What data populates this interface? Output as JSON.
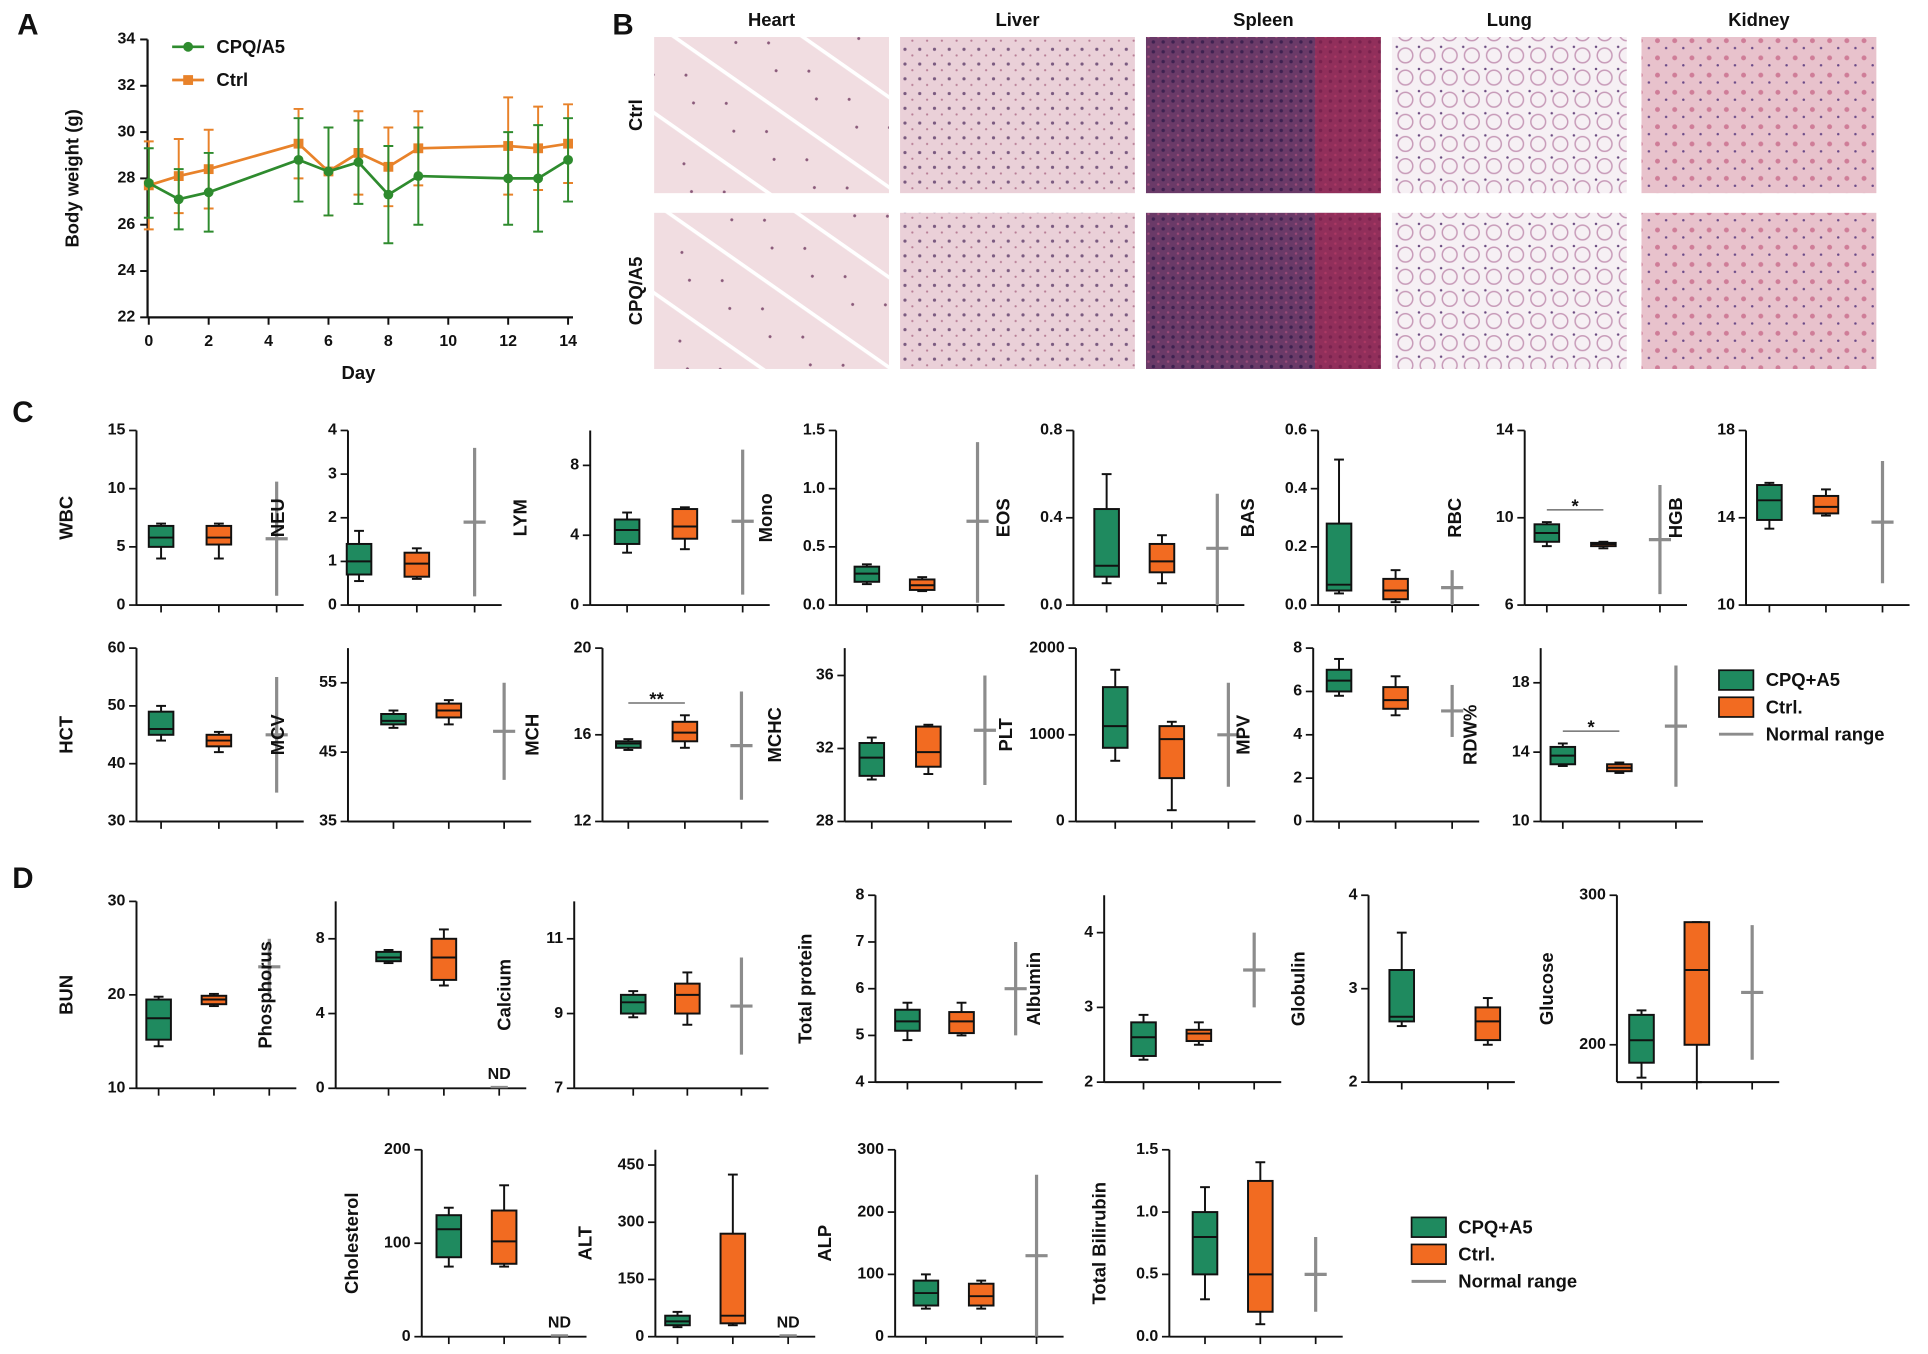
{
  "box_legend": [
    {
      "name": "CPQ+A5",
      "color": "#1f8a5f"
    },
    {
      "name": "Ctrl.",
      "color": "#f26b21"
    },
    {
      "name": "Normal range",
      "color": "#8c8c8c"
    }
  ],
  "chart_data": [
    {
      "type": "line",
      "panel": "A",
      "xlabel": "Day",
      "ylabel": "Body weight (g)",
      "x": [
        0,
        1,
        2,
        5,
        6,
        7,
        8,
        9,
        12,
        13,
        14
      ],
      "xlim": [
        0,
        14
      ],
      "xticks": [
        0,
        2,
        4,
        6,
        8,
        10,
        12,
        14
      ],
      "ylim": [
        22,
        34
      ],
      "yticks": [
        22,
        24,
        26,
        28,
        30,
        32,
        34
      ],
      "series": [
        {
          "name": "CPQ/A5",
          "color": "#2e8b2e",
          "marker": "circle",
          "values": [
            27.8,
            27.1,
            27.4,
            28.8,
            28.3,
            28.7,
            27.3,
            28.1,
            28.0,
            28.0,
            28.8
          ],
          "errors": [
            1.5,
            1.3,
            1.7,
            1.8,
            1.9,
            1.8,
            2.1,
            2.1,
            2.0,
            2.3,
            1.8
          ]
        },
        {
          "name": "Ctrl",
          "color": "#e8822a",
          "marker": "square",
          "values": [
            27.7,
            28.1,
            28.4,
            29.5,
            28.3,
            29.1,
            28.5,
            29.3,
            29.4,
            29.3,
            29.5
          ],
          "errors": [
            1.9,
            1.6,
            1.7,
            1.5,
            1.9,
            1.8,
            1.7,
            1.6,
            2.1,
            1.8,
            1.7
          ]
        }
      ]
    },
    {
      "type": "image-grid",
      "panel": "B",
      "columns": [
        "Heart",
        "Liver",
        "Spleen",
        "Lung",
        "Kidney"
      ],
      "rows": [
        "Ctrl",
        "CPQ/A5"
      ]
    },
    {
      "type": "box",
      "panel": "C",
      "ylabel": "WBC",
      "ylim": [
        0,
        15
      ],
      "yticks": [
        0,
        5,
        10,
        15
      ],
      "boxes": [
        {
          "min": 4,
          "q1": 5,
          "median": 5.8,
          "q3": 6.8,
          "max": 7
        },
        {
          "min": 4,
          "q1": 5.2,
          "median": 5.8,
          "q3": 6.8,
          "max": 7
        }
      ],
      "normal": {
        "min": 0.8,
        "mid": 5.7,
        "max": 10.6
      }
    },
    {
      "type": "box",
      "ylabel": "NEU",
      "ylim": [
        0,
        4
      ],
      "yticks": [
        0,
        1,
        2,
        3,
        4
      ],
      "boxes": [
        {
          "min": 0.55,
          "q1": 0.7,
          "median": 1.0,
          "q3": 1.4,
          "max": 1.7
        },
        {
          "min": 0.6,
          "q1": 0.65,
          "median": 0.95,
          "q3": 1.2,
          "max": 1.3
        }
      ],
      "normal": {
        "min": 0.2,
        "mid": 1.9,
        "max": 3.6
      }
    },
    {
      "type": "box",
      "ylabel": "LYM",
      "ylim": [
        0,
        10
      ],
      "yticks": [
        0,
        4,
        8
      ],
      "boxes": [
        {
          "min": 3,
          "q1": 3.5,
          "median": 4.3,
          "q3": 4.9,
          "max": 5.3
        },
        {
          "min": 3.2,
          "q1": 3.8,
          "median": 4.5,
          "q3": 5.5,
          "max": 5.6
        }
      ],
      "normal": {
        "min": 0.6,
        "mid": 4.8,
        "max": 8.9
      }
    },
    {
      "type": "box",
      "ylabel": "Mono",
      "ylim": [
        0,
        1.5
      ],
      "yticks": [
        {
          "value": 0,
          "label": "0.0"
        },
        {
          "value": 0.5,
          "label": "0.5"
        },
        {
          "value": 1,
          "label": "1.0"
        },
        {
          "value": 1.5,
          "label": "1.5"
        }
      ],
      "boxes": [
        {
          "min": 0.18,
          "q1": 0.2,
          "median": 0.27,
          "q3": 0.33,
          "max": 0.35
        },
        {
          "min": 0.12,
          "q1": 0.13,
          "median": 0.17,
          "q3": 0.22,
          "max": 0.24
        }
      ],
      "normal": {
        "min": 0.02,
        "mid": 0.72,
        "max": 1.4
      }
    },
    {
      "type": "box",
      "ylabel": "EOS",
      "ylim": [
        0,
        0.8
      ],
      "yticks": [
        {
          "value": 0,
          "label": "0.0"
        },
        0.4,
        0.8
      ],
      "boxes": [
        {
          "min": 0.1,
          "q1": 0.13,
          "median": 0.18,
          "q3": 0.44,
          "max": 0.6
        },
        {
          "min": 0.1,
          "q1": 0.15,
          "median": 0.2,
          "q3": 0.28,
          "max": 0.32
        }
      ],
      "normal": {
        "min": 0,
        "mid": 0.26,
        "max": 0.51
      }
    },
    {
      "type": "box",
      "ylabel": "BAS",
      "ylim": [
        0,
        0.6
      ],
      "yticks": [
        {
          "value": 0,
          "label": "0.0"
        },
        0.2,
        0.4,
        0.6
      ],
      "boxes": [
        {
          "min": 0.04,
          "q1": 0.05,
          "median": 0.07,
          "q3": 0.28,
          "max": 0.5
        },
        {
          "min": 0.01,
          "q1": 0.02,
          "median": 0.05,
          "q3": 0.09,
          "max": 0.12
        }
      ],
      "normal": {
        "min": 0,
        "mid": 0.06,
        "max": 0.12
      }
    },
    {
      "type": "box",
      "ylabel": "RBC",
      "ylim": [
        6,
        14
      ],
      "yticks": [
        6,
        10,
        14
      ],
      "annotation": "*",
      "boxes": [
        {
          "min": 8.7,
          "q1": 8.9,
          "median": 9.3,
          "q3": 9.7,
          "max": 9.8
        },
        {
          "min": 8.6,
          "q1": 8.7,
          "median": 8.8,
          "q3": 8.85,
          "max": 8.9
        }
      ],
      "normal": {
        "min": 6.5,
        "mid": 9,
        "max": 11.5
      }
    },
    {
      "type": "box",
      "ylabel": "HGB",
      "ylim": [
        10,
        18
      ],
      "yticks": [
        10,
        14,
        18
      ],
      "boxes": [
        {
          "min": 13.5,
          "q1": 13.9,
          "median": 14.8,
          "q3": 15.5,
          "max": 15.6
        },
        {
          "min": 14.1,
          "q1": 14.2,
          "median": 14.5,
          "q3": 15,
          "max": 15.3
        }
      ],
      "normal": {
        "min": 11,
        "mid": 13.8,
        "max": 16.6
      }
    },
    {
      "type": "box",
      "ylabel": "HCT",
      "ylim": [
        30,
        60
      ],
      "yticks": [
        30,
        40,
        50,
        60
      ],
      "boxes": [
        {
          "min": 44,
          "q1": 45,
          "median": 46,
          "q3": 49,
          "max": 50
        },
        {
          "min": 42,
          "q1": 43,
          "median": 44,
          "q3": 45,
          "max": 45.5
        }
      ],
      "normal": {
        "min": 35,
        "mid": 45,
        "max": 55
      }
    },
    {
      "type": "box",
      "ylabel": "MCV",
      "ylim": [
        35,
        60
      ],
      "yticks": [
        35,
        45,
        55
      ],
      "boxes": [
        {
          "min": 48.5,
          "q1": 49,
          "median": 49.5,
          "q3": 50.5,
          "max": 51
        },
        {
          "min": 49,
          "q1": 50,
          "median": 51,
          "q3": 52,
          "max": 52.5
        }
      ],
      "normal": {
        "min": 41,
        "mid": 48,
        "max": 55
      }
    },
    {
      "type": "box",
      "ylabel": "MCH",
      "ylim": [
        12,
        20
      ],
      "yticks": [
        12,
        16,
        20
      ],
      "annotation": "**",
      "boxes": [
        {
          "min": 15.3,
          "q1": 15.4,
          "median": 15.6,
          "q3": 15.7,
          "max": 15.8
        },
        {
          "min": 15.4,
          "q1": 15.7,
          "median": 16.1,
          "q3": 16.6,
          "max": 16.9
        }
      ],
      "normal": {
        "min": 13,
        "mid": 15.5,
        "max": 18
      }
    },
    {
      "type": "box",
      "ylabel": "MCHC",
      "ylim": [
        28,
        37.5
      ],
      "yticks": [
        28,
        32,
        36
      ],
      "boxes": [
        {
          "min": 30.3,
          "q1": 30.5,
          "median": 31.5,
          "q3": 32.3,
          "max": 32.6
        },
        {
          "min": 30.6,
          "q1": 31,
          "median": 31.8,
          "q3": 33.2,
          "max": 33.3
        }
      ],
      "normal": {
        "min": 30,
        "mid": 33,
        "max": 36
      }
    },
    {
      "type": "box",
      "ylabel": "PLT",
      "ylim": [
        0,
        2000
      ],
      "yticks": [
        0,
        1000,
        2000
      ],
      "boxes": [
        {
          "min": 700,
          "q1": 850,
          "median": 1100,
          "q3": 1550,
          "max": 1750
        },
        {
          "min": 130,
          "q1": 500,
          "median": 950,
          "q3": 1100,
          "max": 1150
        }
      ],
      "normal": {
        "min": 400,
        "mid": 1000,
        "max": 1600
      }
    },
    {
      "type": "box",
      "ylabel": "MPV",
      "ylim": [
        0,
        8
      ],
      "yticks": [
        0,
        2,
        4,
        6,
        8
      ],
      "boxes": [
        {
          "min": 5.8,
          "q1": 6,
          "median": 6.5,
          "q3": 7,
          "max": 7.5
        },
        {
          "min": 4.9,
          "q1": 5.2,
          "median": 5.6,
          "q3": 6.2,
          "max": 6.7
        }
      ],
      "normal": {
        "min": 3.9,
        "mid": 5.1,
        "max": 6.3
      }
    },
    {
      "type": "box",
      "ylabel": "RDW%",
      "ylim": [
        10,
        20
      ],
      "yticks": [
        10,
        14,
        18
      ],
      "annotation": "*",
      "boxes": [
        {
          "min": 13.2,
          "q1": 13.3,
          "median": 13.8,
          "q3": 14.3,
          "max": 14.5
        },
        {
          "min": 12.8,
          "q1": 12.9,
          "median": 13.1,
          "q3": 13.3,
          "max": 13.4
        }
      ],
      "normal": {
        "min": 12,
        "mid": 15.5,
        "max": 19
      }
    },
    {
      "type": "box",
      "panel": "D",
      "ylabel": "BUN",
      "ylim": [
        10,
        30
      ],
      "yticks": [
        10,
        20,
        30
      ],
      "boxes": [
        {
          "min": 14.5,
          "q1": 15.2,
          "median": 17.5,
          "q3": 19.5,
          "max": 19.8
        },
        {
          "min": 18.8,
          "q1": 19,
          "median": 19.5,
          "q3": 19.9,
          "max": 20.1
        }
      ],
      "normal": {
        "min": 20,
        "mid": 23,
        "max": 26
      }
    },
    {
      "type": "box",
      "ylabel": "Phosphorus",
      "ylim": [
        0,
        10
      ],
      "yticks": [
        0,
        4,
        8
      ],
      "normal_label": "ND",
      "boxes": [
        {
          "min": 6.7,
          "q1": 6.8,
          "median": 7,
          "q3": 7.3,
          "max": 7.4
        },
        {
          "min": 5.5,
          "q1": 5.8,
          "median": 7,
          "q3": 8,
          "max": 8.5
        }
      ]
    },
    {
      "type": "box",
      "ylabel": "Calcium",
      "ylim": [
        7,
        12
      ],
      "yticks": [
        7,
        9,
        11
      ],
      "boxes": [
        {
          "min": 8.9,
          "q1": 9,
          "median": 9.3,
          "q3": 9.5,
          "max": 9.6
        },
        {
          "min": 8.7,
          "q1": 9,
          "median": 9.5,
          "q3": 9.8,
          "max": 10.1
        }
      ],
      "normal": {
        "min": 7.9,
        "mid": 9.2,
        "max": 10.5
      }
    },
    {
      "type": "box",
      "ylabel": "Total protein",
      "ylim": [
        4,
        8
      ],
      "yticks": [
        4,
        5,
        6,
        7,
        8
      ],
      "boxes": [
        {
          "min": 4.9,
          "q1": 5.1,
          "median": 5.3,
          "q3": 5.55,
          "max": 5.7
        },
        {
          "min": 5,
          "q1": 5.05,
          "median": 5.3,
          "q3": 5.5,
          "max": 5.7
        }
      ],
      "normal": {
        "min": 5,
        "mid": 6,
        "max": 7
      }
    },
    {
      "type": "box",
      "ylabel": "Albumin",
      "ylim": [
        2,
        4.5
      ],
      "yticks": [
        2,
        3,
        4
      ],
      "boxes": [
        {
          "min": 2.3,
          "q1": 2.35,
          "median": 2.6,
          "q3": 2.8,
          "max": 2.9
        },
        {
          "min": 2.5,
          "q1": 2.55,
          "median": 2.65,
          "q3": 2.7,
          "max": 2.8
        }
      ],
      "normal": {
        "min": 3,
        "mid": 3.5,
        "max": 4
      }
    },
    {
      "type": "box",
      "ylabel": "Globulin",
      "ylim": [
        2,
        4
      ],
      "yticks": [
        2,
        3,
        4
      ],
      "boxes": [
        {
          "min": 2.6,
          "q1": 2.65,
          "median": 2.7,
          "q3": 3.2,
          "max": 3.6
        },
        {
          "min": 2.4,
          "q1": 2.45,
          "median": 2.65,
          "q3": 2.8,
          "max": 2.9
        }
      ]
    },
    {
      "type": "box",
      "ylabel": "Glucose",
      "ylim": [
        175,
        300
      ],
      "yticks": [
        200,
        300
      ],
      "boxes": [
        {
          "min": 178,
          "q1": 188,
          "median": 203,
          "q3": 220,
          "max": 223
        },
        {
          "min": 175,
          "q1": 200,
          "median": 250,
          "q3": 282,
          "max": 282
        }
      ],
      "normal": {
        "min": 190,
        "mid": 235,
        "max": 280
      }
    },
    {
      "type": "box",
      "ylabel": "Cholesterol",
      "ylim": [
        0,
        200
      ],
      "yticks": [
        0,
        100,
        200
      ],
      "normal_label": "ND",
      "boxes": [
        {
          "min": 75,
          "q1": 85,
          "median": 115,
          "q3": 130,
          "max": 138
        },
        {
          "min": 75,
          "q1": 78,
          "median": 102,
          "q3": 135,
          "max": 162
        }
      ]
    },
    {
      "type": "box",
      "ylabel": "ALT",
      "ylim": [
        0,
        490
      ],
      "yticks": [
        0,
        150,
        300,
        450
      ],
      "normal_label": "ND",
      "boxes": [
        {
          "min": 25,
          "q1": 30,
          "median": 40,
          "q3": 55,
          "max": 65
        },
        {
          "min": 30,
          "q1": 35,
          "median": 55,
          "q3": 270,
          "max": 425
        }
      ]
    },
    {
      "type": "box",
      "ylabel": "ALP",
      "ylim": [
        0,
        300
      ],
      "yticks": [
        0,
        100,
        200,
        300
      ],
      "boxes": [
        {
          "min": 45,
          "q1": 50,
          "median": 70,
          "q3": 90,
          "max": 100
        },
        {
          "min": 45,
          "q1": 50,
          "median": 65,
          "q3": 85,
          "max": 90
        }
      ],
      "normal": {
        "min": 0,
        "mid": 130,
        "max": 260
      }
    },
    {
      "type": "box",
      "ylabel": "Total Bilirubin",
      "ylim": [
        0,
        1.5
      ],
      "yticks": [
        {
          "value": 0,
          "label": "0.0"
        },
        {
          "value": 0.5,
          "label": "0.5"
        },
        {
          "value": 1,
          "label": "1.0"
        },
        {
          "value": 1.5,
          "label": "1.5"
        }
      ],
      "boxes": [
        {
          "min": 0.3,
          "q1": 0.5,
          "median": 0.8,
          "q3": 1.0,
          "max": 1.2
        },
        {
          "min": 0.1,
          "q1": 0.2,
          "median": 0.5,
          "q3": 1.25,
          "max": 1.4
        }
      ],
      "normal": {
        "min": 0.2,
        "mid": 0.5,
        "max": 0.8
      }
    }
  ]
}
